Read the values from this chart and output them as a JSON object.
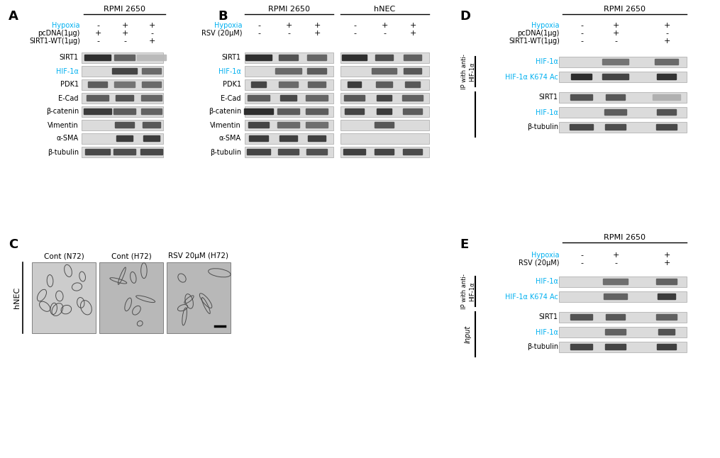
{
  "fig_width": 10.15,
  "fig_height": 6.46,
  "bg_color": "#ffffff",
  "cyan": "#00b0f0",
  "black": "#000000",
  "panel_A": {
    "label": "A",
    "cell_line": "RPMI 2650",
    "cond_labels": [
      "Hypoxia",
      "pcDNA(1μg)",
      "SIRT1-WT(1μg)"
    ],
    "cond_vals": [
      [
        "-",
        "+",
        "+"
      ],
      [
        "+",
        "+",
        "-"
      ],
      [
        "-",
        "-",
        "+"
      ]
    ],
    "blot_labels": [
      "SIRT1",
      "HIF-1α",
      "PDK1",
      "E-Cad",
      "β-catenin",
      "Vimentin",
      "α-SMA",
      "β-tubulin"
    ],
    "blot_cyan": [
      "HIF-1α"
    ],
    "bands": [
      [
        [
          0.12,
          36
        ],
        [
          0.35,
          28
        ],
        [
          0.72,
          40
        ]
      ],
      [
        [
          0.0,
          0
        ],
        [
          0.22,
          34
        ],
        [
          0.38,
          26
        ]
      ],
      [
        [
          0.32,
          26
        ],
        [
          0.42,
          28
        ],
        [
          0.38,
          26
        ]
      ],
      [
        [
          0.32,
          30
        ],
        [
          0.28,
          24
        ],
        [
          0.36,
          28
        ]
      ],
      [
        [
          0.18,
          38
        ],
        [
          0.32,
          30
        ],
        [
          0.35,
          28
        ]
      ],
      [
        [
          0.0,
          0
        ],
        [
          0.28,
          26
        ],
        [
          0.3,
          24
        ]
      ],
      [
        [
          0.0,
          0
        ],
        [
          0.18,
          22
        ],
        [
          0.18,
          22
        ]
      ],
      [
        [
          0.24,
          34
        ],
        [
          0.26,
          30
        ],
        [
          0.24,
          30
        ]
      ]
    ]
  },
  "panel_B": {
    "label": "B",
    "cell_lines": [
      "RPMI 2650",
      "hNEC"
    ],
    "cond_labels": [
      "Hypoxia",
      "RSV (20μM)"
    ],
    "cond_vals_rpmi": [
      [
        "-",
        "+",
        "+"
      ],
      [
        "-",
        "-",
        "+"
      ]
    ],
    "cond_vals_hnec": [
      [
        "-",
        "+",
        "+"
      ],
      [
        "-",
        "-",
        "+"
      ]
    ],
    "blot_labels": [
      "SIRT1",
      "HIF-1α",
      "PDK1",
      "E-Cad",
      "β-catenin",
      "Vimentin",
      "α-SMA",
      "β-tubulin"
    ],
    "blot_cyan": [
      "HIF-1α"
    ],
    "bands_rpmi": [
      [
        [
          0.12,
          36
        ],
        [
          0.28,
          26
        ],
        [
          0.36,
          26
        ]
      ],
      [
        [
          0.0,
          0
        ],
        [
          0.38,
          36
        ],
        [
          0.32,
          26
        ]
      ],
      [
        [
          0.22,
          20
        ],
        [
          0.38,
          26
        ],
        [
          0.35,
          24
        ]
      ],
      [
        [
          0.32,
          30
        ],
        [
          0.24,
          22
        ],
        [
          0.36,
          30
        ]
      ],
      [
        [
          0.12,
          40
        ],
        [
          0.32,
          30
        ],
        [
          0.32,
          30
        ]
      ],
      [
        [
          0.22,
          28
        ],
        [
          0.38,
          30
        ],
        [
          0.4,
          30
        ]
      ],
      [
        [
          0.18,
          26
        ],
        [
          0.2,
          24
        ],
        [
          0.2,
          24
        ]
      ],
      [
        [
          0.22,
          32
        ],
        [
          0.25,
          28
        ],
        [
          0.27,
          28
        ]
      ]
    ],
    "bands_hnec": [
      [
        [
          0.12,
          34
        ],
        [
          0.26,
          24
        ],
        [
          0.34,
          24
        ]
      ],
      [
        [
          0.0,
          0
        ],
        [
          0.36,
          34
        ],
        [
          0.3,
          24
        ]
      ],
      [
        [
          0.18,
          18
        ],
        [
          0.32,
          22
        ],
        [
          0.3,
          20
        ]
      ],
      [
        [
          0.3,
          28
        ],
        [
          0.22,
          20
        ],
        [
          0.34,
          28
        ]
      ],
      [
        [
          0.22,
          26
        ],
        [
          0.18,
          20
        ],
        [
          0.32,
          26
        ]
      ],
      [
        [
          0.0,
          0
        ],
        [
          0.3,
          26
        ],
        [
          0.0,
          0
        ]
      ],
      [
        [
          0.0,
          0
        ],
        [
          0.0,
          0
        ],
        [
          0.0,
          0
        ]
      ],
      [
        [
          0.2,
          30
        ],
        [
          0.22,
          26
        ],
        [
          0.25,
          26
        ]
      ]
    ]
  },
  "panel_C": {
    "label": "C",
    "cell_line": "hNEC",
    "img_titles": [
      "Cont (N72)",
      "Cont (H72)",
      "RSV 20μM (H72)"
    ]
  },
  "panel_D": {
    "label": "D",
    "cell_line": "RPMI 2650",
    "cond_labels": [
      "Hypoxia",
      "pcDNA(1μg)",
      "SIRT1-WT(1μg)"
    ],
    "cond_vals": [
      [
        "-",
        "+",
        "+"
      ],
      [
        "-",
        "+",
        "-"
      ],
      [
        "-",
        "-",
        "+"
      ]
    ],
    "ip_label": "IP with anti-\nHIF-1α",
    "ip_blots": [
      "HIF-1α",
      "HIF-1α K674 Ac"
    ],
    "ip_cyan": [
      "HIF-1α",
      "HIF-1α K674 Ac"
    ],
    "input_blots": [
      "SIRT1",
      "HIF-1α",
      "β-tubulin"
    ],
    "input_cyan": [
      "HIF-1α"
    ],
    "ip_bands": [
      [
        [
          0.0,
          0
        ],
        [
          0.42,
          36
        ],
        [
          0.38,
          32
        ]
      ],
      [
        [
          0.12,
          28
        ],
        [
          0.22,
          36
        ],
        [
          0.15,
          26
        ]
      ]
    ],
    "input_bands": [
      [
        [
          0.28,
          30
        ],
        [
          0.3,
          26
        ],
        [
          0.68,
          38
        ]
      ],
      [
        [
          0.0,
          0
        ],
        [
          0.32,
          30
        ],
        [
          0.28,
          26
        ]
      ],
      [
        [
          0.24,
          32
        ],
        [
          0.26,
          28
        ],
        [
          0.24,
          28
        ]
      ]
    ]
  },
  "panel_E": {
    "label": "E",
    "cell_line": "RPMI 2650",
    "cond_labels": [
      "Hypoxia",
      "RSV (20μM)"
    ],
    "cond_vals": [
      [
        "-",
        "+",
        "+"
      ],
      [
        "-",
        "-",
        "+"
      ]
    ],
    "ip_label": "IP with anti-\nHIF-1α",
    "input_label": "Input",
    "ip_blots": [
      "HIF-1α",
      "HIF-1α K674 Ac"
    ],
    "ip_cyan": [
      "HIF-1α",
      "HIF-1α K674 Ac"
    ],
    "input_blots": [
      "SIRT1",
      "HIF-1α",
      "β-tubulin"
    ],
    "input_cyan": [
      "HIF-1α"
    ],
    "ip_bands": [
      [
        [
          0.0,
          0
        ],
        [
          0.4,
          34
        ],
        [
          0.35,
          28
        ]
      ],
      [
        [
          0.0,
          0
        ],
        [
          0.35,
          32
        ],
        [
          0.18,
          24
        ]
      ]
    ],
    "input_bands": [
      [
        [
          0.28,
          30
        ],
        [
          0.3,
          26
        ],
        [
          0.34,
          28
        ]
      ],
      [
        [
          0.0,
          0
        ],
        [
          0.34,
          28
        ],
        [
          0.28,
          22
        ]
      ],
      [
        [
          0.22,
          30
        ],
        [
          0.22,
          28
        ],
        [
          0.2,
          26
        ]
      ]
    ]
  }
}
